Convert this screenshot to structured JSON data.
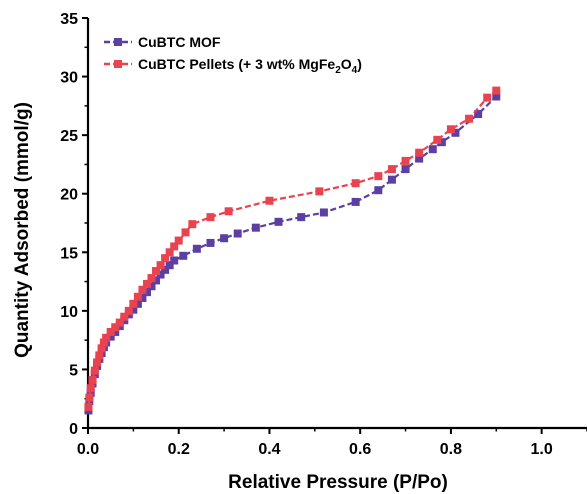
{
  "chart_data": {
    "type": "line",
    "xlabel": "Relative Pressure (P/Po)",
    "ylabel": "Quantity Adsorbed (mmol/g)",
    "xlim": [
      0,
      1.1
    ],
    "ylim": [
      0,
      35
    ],
    "x_ticks": [
      "0.0",
      "0.2",
      "0.4",
      "0.6",
      "0.8",
      "1.0"
    ],
    "y_ticks": [
      "0",
      "5",
      "10",
      "15",
      "20",
      "25",
      "30",
      "35"
    ],
    "grid": false,
    "legend_position": "top-left",
    "series": [
      {
        "name": "CuBTC MOF",
        "legend_main": "CuBTC MOF",
        "color": "#5b3fa3",
        "marker": "square",
        "points": [
          [
            0.001,
            1.5
          ],
          [
            0.003,
            2.3
          ],
          [
            0.006,
            3.0
          ],
          [
            0.01,
            3.8
          ],
          [
            0.015,
            4.6
          ],
          [
            0.02,
            5.3
          ],
          [
            0.025,
            5.9
          ],
          [
            0.03,
            6.4
          ],
          [
            0.035,
            6.9
          ],
          [
            0.04,
            7.3
          ],
          [
            0.05,
            7.8
          ],
          [
            0.06,
            8.2
          ],
          [
            0.07,
            8.7
          ],
          [
            0.08,
            9.2
          ],
          [
            0.09,
            9.7
          ],
          [
            0.1,
            10.1
          ],
          [
            0.11,
            10.6
          ],
          [
            0.12,
            11.1
          ],
          [
            0.13,
            11.6
          ],
          [
            0.14,
            12.1
          ],
          [
            0.15,
            12.6
          ],
          [
            0.16,
            13.1
          ],
          [
            0.17,
            13.5
          ],
          [
            0.18,
            13.9
          ],
          [
            0.19,
            14.3
          ],
          [
            0.21,
            14.7
          ],
          [
            0.24,
            15.3
          ],
          [
            0.27,
            15.8
          ],
          [
            0.3,
            16.2
          ],
          [
            0.33,
            16.6
          ],
          [
            0.37,
            17.1
          ],
          [
            0.42,
            17.6
          ],
          [
            0.47,
            18.0
          ],
          [
            0.52,
            18.4
          ],
          [
            0.59,
            19.3
          ],
          [
            0.64,
            20.3
          ],
          [
            0.67,
            21.2
          ],
          [
            0.7,
            22.1
          ],
          [
            0.73,
            23.0
          ],
          [
            0.76,
            23.8
          ],
          [
            0.78,
            24.4
          ],
          [
            0.81,
            25.2
          ],
          [
            0.86,
            26.8
          ],
          [
            0.9,
            28.3
          ]
        ]
      },
      {
        "name": "CuBTC Pellets (+ 3 wt% MgFe2O4)",
        "legend_main": "CuBTC Pellets (+ 3 wt% MgFe",
        "legend_sub1": "2",
        "legend_mid": "O",
        "legend_sub2": "4",
        "legend_end": ")",
        "color": "#e8434e",
        "marker": "square",
        "points": [
          [
            0.001,
            1.8
          ],
          [
            0.003,
            2.6
          ],
          [
            0.006,
            3.4
          ],
          [
            0.01,
            4.1
          ],
          [
            0.015,
            4.9
          ],
          [
            0.02,
            5.6
          ],
          [
            0.025,
            6.2
          ],
          [
            0.03,
            6.8
          ],
          [
            0.035,
            7.3
          ],
          [
            0.04,
            7.7
          ],
          [
            0.05,
            8.2
          ],
          [
            0.06,
            8.6
          ],
          [
            0.07,
            9.0
          ],
          [
            0.08,
            9.5
          ],
          [
            0.09,
            10.0
          ],
          [
            0.1,
            10.6
          ],
          [
            0.11,
            11.2
          ],
          [
            0.12,
            11.8
          ],
          [
            0.13,
            12.3
          ],
          [
            0.14,
            12.8
          ],
          [
            0.15,
            13.4
          ],
          [
            0.16,
            13.9
          ],
          [
            0.17,
            14.5
          ],
          [
            0.18,
            15.0
          ],
          [
            0.19,
            15.5
          ],
          [
            0.2,
            16.0
          ],
          [
            0.215,
            16.7
          ],
          [
            0.23,
            17.4
          ],
          [
            0.27,
            18.0
          ],
          [
            0.31,
            18.5
          ],
          [
            0.4,
            19.4
          ],
          [
            0.51,
            20.2
          ],
          [
            0.59,
            20.9
          ],
          [
            0.64,
            21.5
          ],
          [
            0.67,
            22.1
          ],
          [
            0.7,
            22.8
          ],
          [
            0.73,
            23.5
          ],
          [
            0.77,
            24.6
          ],
          [
            0.8,
            25.5
          ],
          [
            0.84,
            26.4
          ],
          [
            0.88,
            28.2
          ],
          [
            0.9,
            28.8
          ]
        ]
      }
    ]
  }
}
